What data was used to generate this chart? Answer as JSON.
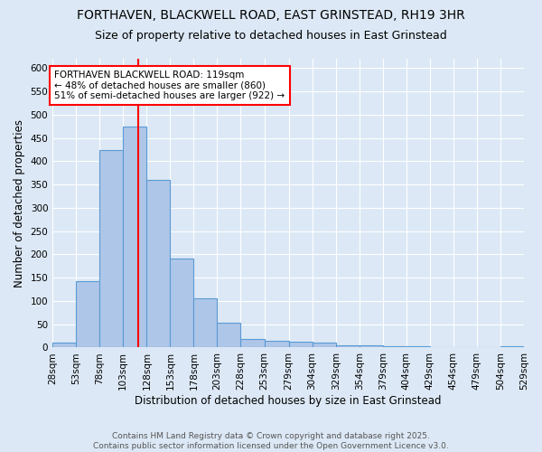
{
  "title_line1": "FORTHAVEN, BLACKWELL ROAD, EAST GRINSTEAD, RH19 3HR",
  "title_line2": "Size of property relative to detached houses in East Grinstead",
  "xlabel": "Distribution of detached houses by size in East Grinstead",
  "ylabel": "Number of detached properties",
  "bar_edges": [
    28,
    53,
    78,
    103,
    128,
    153,
    178,
    203,
    228,
    253,
    279,
    304,
    329,
    354,
    379,
    404,
    429,
    454,
    479,
    504,
    529
  ],
  "bar_heights": [
    10,
    143,
    424,
    475,
    360,
    192,
    106,
    54,
    18,
    14,
    12,
    10,
    4,
    4,
    2,
    3,
    0,
    0,
    0,
    3
  ],
  "bar_color": "#aec6e8",
  "bar_edge_color": "#5b9bd5",
  "red_line_x": 119,
  "annotation_text": "FORTHAVEN BLACKWELL ROAD: 119sqm\n← 48% of detached houses are smaller (860)\n51% of semi-detached houses are larger (922) →",
  "annotation_box_color": "white",
  "annotation_edge_color": "red",
  "ylim": [
    0,
    620
  ],
  "yticks": [
    0,
    50,
    100,
    150,
    200,
    250,
    300,
    350,
    400,
    450,
    500,
    550,
    600
  ],
  "background_color": "#dce8f5",
  "plot_bg_color": "#dce8f5",
  "footer_text": "Contains HM Land Registry data © Crown copyright and database right 2025.\nContains public sector information licensed under the Open Government Licence v3.0.",
  "title_fontsize": 10,
  "subtitle_fontsize": 9,
  "axis_label_fontsize": 8.5,
  "tick_fontsize": 7.5,
  "annotation_fontsize": 7.5,
  "footer_fontsize": 6.5
}
